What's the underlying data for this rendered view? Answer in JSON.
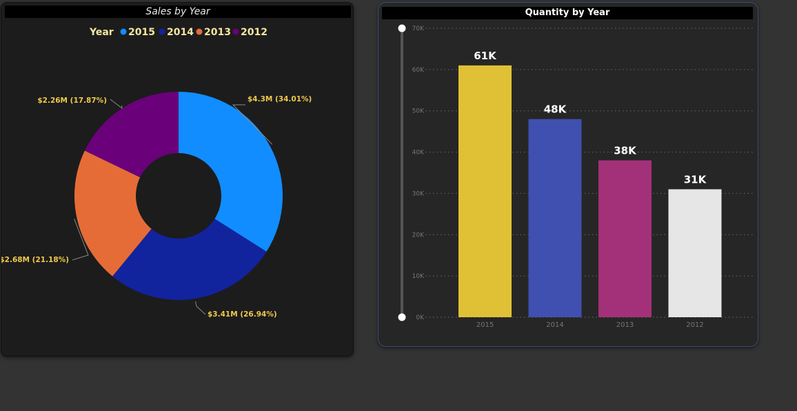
{
  "colors": {
    "page_bg": "#333333",
    "label_gold": "#f2c94c",
    "axis_gray": "#777777"
  },
  "chart_data": [
    {
      "type": "donut",
      "title": "Sales by Year",
      "legend": {
        "title": "Year",
        "position": "top-center",
        "entries": [
          "2015",
          "2014",
          "2013",
          "2012"
        ]
      },
      "slices": [
        {
          "name": "2015",
          "value": 4.3,
          "percent": 34.01,
          "label": "$4.3M (34.01%)",
          "color": "#118dff"
        },
        {
          "name": "2014",
          "value": 3.41,
          "percent": 26.94,
          "label": "$3.41M (26.94%)",
          "color": "#12239e"
        },
        {
          "name": "2013",
          "value": 2.68,
          "percent": 21.18,
          "label": "$2.68M (21.18%)",
          "color": "#e66c37"
        },
        {
          "name": "2012",
          "value": 2.26,
          "percent": 17.87,
          "label": "$2.26M (17.87%)",
          "color": "#6b007b"
        }
      ]
    },
    {
      "type": "bar",
      "title": "Quantity by Year",
      "categories": [
        "2015",
        "2014",
        "2013",
        "2012"
      ],
      "values": [
        61000,
        48000,
        38000,
        31000
      ],
      "data_labels": [
        "61K",
        "48K",
        "38K",
        "31K"
      ],
      "colors": [
        "#e0c136",
        "#4050b0",
        "#a33179",
        "#e6e6e6"
      ],
      "ylim": [
        0,
        70000
      ],
      "yticks": [
        0,
        10000,
        20000,
        30000,
        40000,
        50000,
        60000,
        70000
      ],
      "ytick_labels": [
        "0K",
        "10K",
        "20K",
        "30K",
        "40K",
        "50K",
        "60K",
        "70K"
      ],
      "grid": true
    }
  ]
}
